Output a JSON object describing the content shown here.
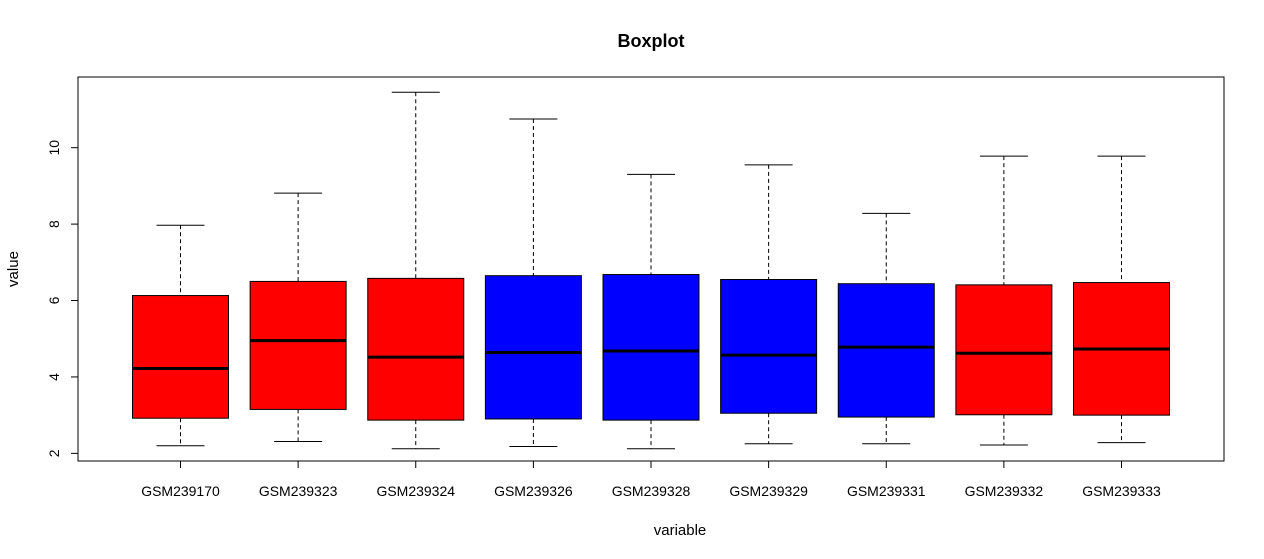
{
  "chart_data": {
    "type": "boxplot",
    "title": "Boxplot",
    "xlabel": "variable",
    "ylabel": "value",
    "ylim": [
      1.8,
      11.85
    ],
    "yticks": [
      2,
      4,
      6,
      8,
      10
    ],
    "grid": false,
    "legend": "none",
    "categories": [
      "GSM239170",
      "GSM239323",
      "GSM239324",
      "GSM239326",
      "GSM239328",
      "GSM239329",
      "GSM239331",
      "GSM239332",
      "GSM239333"
    ],
    "boxes": [
      {
        "min": 2.2,
        "q1": 2.92,
        "median": 4.22,
        "q3": 6.13,
        "max": 7.97,
        "color": "#ff0000"
      },
      {
        "min": 2.31,
        "q1": 3.15,
        "median": 4.95,
        "q3": 6.5,
        "max": 8.81,
        "color": "#ff0000"
      },
      {
        "min": 2.12,
        "q1": 2.87,
        "median": 4.52,
        "q3": 6.58,
        "max": 11.45,
        "color": "#ff0000"
      },
      {
        "min": 2.18,
        "q1": 2.9,
        "median": 4.64,
        "q3": 6.65,
        "max": 10.75,
        "color": "#0000ff"
      },
      {
        "min": 2.12,
        "q1": 2.87,
        "median": 4.68,
        "q3": 6.68,
        "max": 9.3,
        "color": "#0000ff"
      },
      {
        "min": 2.25,
        "q1": 3.05,
        "median": 4.57,
        "q3": 6.55,
        "max": 9.55,
        "color": "#0000ff"
      },
      {
        "min": 2.25,
        "q1": 2.95,
        "median": 4.78,
        "q3": 6.44,
        "max": 8.28,
        "color": "#0000ff"
      },
      {
        "min": 2.22,
        "q1": 3.01,
        "median": 4.62,
        "q3": 6.41,
        "max": 9.78,
        "color": "#ff0000"
      },
      {
        "min": 2.28,
        "q1": 3.0,
        "median": 4.73,
        "q3": 6.47,
        "max": 9.78,
        "color": "#ff0000"
      }
    ]
  }
}
